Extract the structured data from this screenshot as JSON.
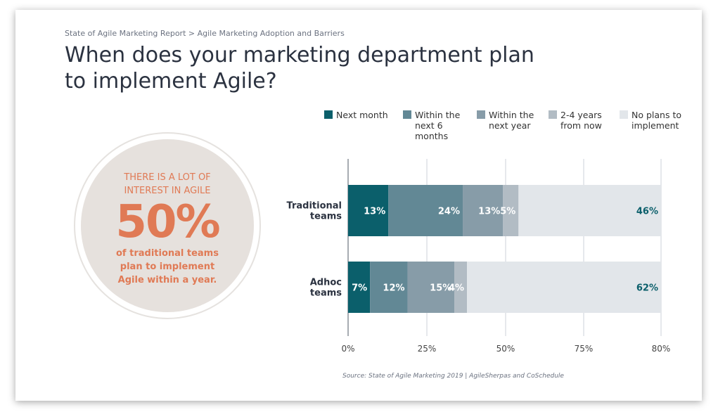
{
  "breadcrumb": "State of Agile Marketing Report  > Agile Marketing Adoption and Barriers",
  "title": "When does your marketing department plan to implement Agile?",
  "callout": {
    "line1": "THERE IS A LOT OF",
    "line2": "INTEREST IN AGILE",
    "big": "50%",
    "line3": "of traditional teams",
    "line4": "plan to implement",
    "line5": "Agile within a year."
  },
  "source": "Source: State of Agile Marketing 2019 | AgileSherpas and CoSchedule",
  "chart_data": {
    "type": "bar",
    "orientation": "horizontal",
    "stacked": true,
    "categories": [
      "Traditional teams",
      "Adhoc teams"
    ],
    "series": [
      {
        "name": "Next month",
        "color": "#0b5f6b",
        "values": [
          13,
          7
        ]
      },
      {
        "name": "Within the next 6 months",
        "color": "#628895",
        "values": [
          24,
          12
        ]
      },
      {
        "name": "Within the next year",
        "color": "#879ca8",
        "values": [
          13,
          15
        ]
      },
      {
        "name": "2-4 years from now",
        "color": "#b2bcc4",
        "values": [
          5,
          4
        ]
      },
      {
        "name": "No plans to implement",
        "color": "#e2e6ea",
        "values": [
          46,
          62
        ]
      }
    ],
    "xticks": [
      "0%",
      "25%",
      "50%",
      "75%",
      "80%"
    ],
    "legend": "top"
  }
}
